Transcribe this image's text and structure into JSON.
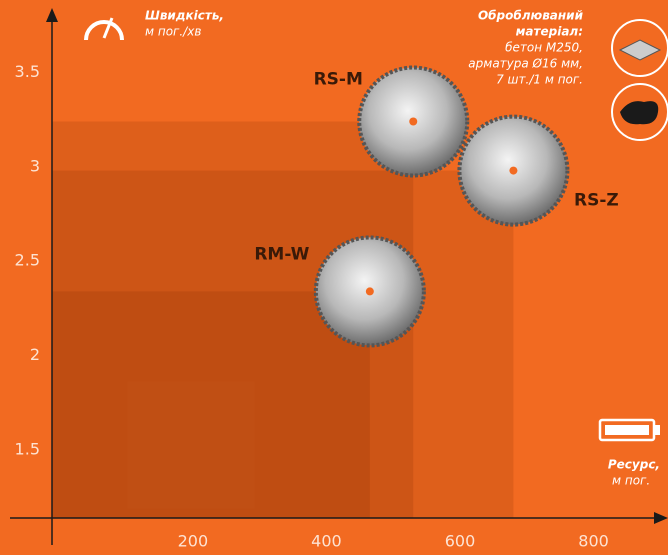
{
  "chart_data": {
    "type": "scatter",
    "y_label": [
      "Швидкість,",
      "м пог./хв"
    ],
    "x_label": [
      "Ресурс,",
      "м пог."
    ],
    "material_title": [
      "Оброблюваний",
      "матеріал:"
    ],
    "material_lines": [
      "бетон М250,",
      "арматура Ø16 мм,",
      "7 шт./1 м пог."
    ],
    "points": [
      {
        "name": "RS-M",
        "x": 530,
        "y": 3.24
      },
      {
        "name": "RS-Z",
        "x": 680,
        "y": 2.98
      },
      {
        "name": "RM-W",
        "x": 465,
        "y": 2.34
      }
    ],
    "xlim": [
      -11,
      907
    ],
    "ylim": [
      1.14,
      3.82
    ],
    "xticks": [
      200,
      400,
      600,
      800
    ],
    "yticks": [
      1.5,
      2,
      2.5,
      3,
      3.5
    ]
  }
}
